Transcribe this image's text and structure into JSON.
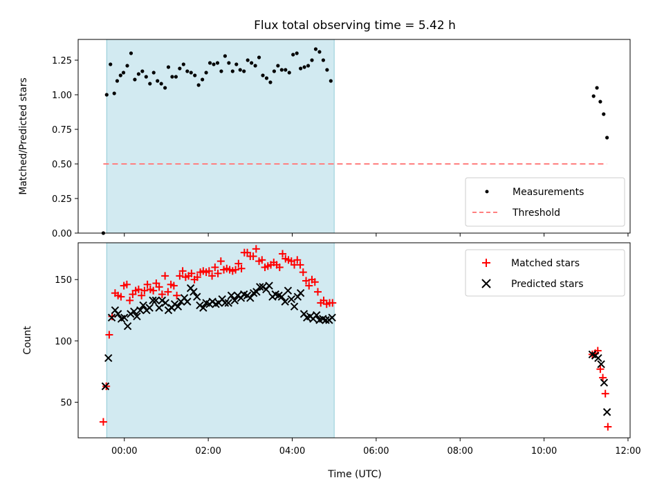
{
  "chart_data": [
    {
      "type": "scatter",
      "title": "Flux total observing time = 5.42 h",
      "xlabel": "",
      "ylabel": "Matched/Predicted stars",
      "xlim": [
        -1.1,
        12.05
      ],
      "ylim": [
        0,
        1.4
      ],
      "yticks": [
        0,
        0.25,
        0.5,
        0.75,
        1.0,
        1.25
      ],
      "ytick_labels": [
        "0.00",
        "0.25",
        "0.50",
        "0.75",
        "1.00",
        "1.25"
      ],
      "xticks": [
        0,
        2,
        4,
        6,
        8,
        10,
        12
      ],
      "shaded_interval": [
        -0.42,
        5.0
      ],
      "shade_color": "#add8e6",
      "series": [
        {
          "name": "Measurements",
          "marker": "dot",
          "color": "#000000",
          "x": [
            -0.5,
            -0.42,
            -0.33,
            -0.24,
            -0.17,
            -0.09,
            -0.02,
            0.07,
            0.16,
            0.25,
            0.34,
            0.43,
            0.52,
            0.61,
            0.7,
            0.79,
            0.88,
            0.97,
            1.05,
            1.14,
            1.23,
            1.32,
            1.41,
            1.5,
            1.59,
            1.68,
            1.77,
            1.86,
            1.95,
            2.04,
            2.13,
            2.22,
            2.31,
            2.4,
            2.49,
            2.58,
            2.67,
            2.76,
            2.85,
            2.94,
            3.03,
            3.12,
            3.21,
            3.3,
            3.39,
            3.48,
            3.57,
            3.66,
            3.75,
            3.84,
            3.93,
            4.02,
            4.11,
            4.2,
            4.29,
            4.38,
            4.47,
            4.56,
            4.65,
            4.74,
            4.83,
            4.92,
            11.18,
            11.26,
            11.34,
            11.42,
            11.5
          ],
          "y": [
            0.0,
            1.0,
            1.22,
            1.01,
            1.1,
            1.14,
            1.16,
            1.21,
            1.3,
            1.11,
            1.15,
            1.17,
            1.13,
            1.08,
            1.16,
            1.1,
            1.08,
            1.05,
            1.2,
            1.13,
            1.13,
            1.19,
            1.22,
            1.17,
            1.16,
            1.14,
            1.07,
            1.11,
            1.16,
            1.23,
            1.22,
            1.23,
            1.17,
            1.28,
            1.23,
            1.17,
            1.22,
            1.18,
            1.17,
            1.25,
            1.23,
            1.21,
            1.27,
            1.14,
            1.12,
            1.09,
            1.17,
            1.21,
            1.18,
            1.18,
            1.16,
            1.29,
            1.3,
            1.19,
            1.2,
            1.21,
            1.25,
            1.33,
            1.31,
            1.25,
            1.18,
            1.1,
            0.99,
            1.05,
            0.95,
            0.86,
            0.69
          ]
        },
        {
          "name": "Threshold",
          "marker": "dashed-line",
          "color": "#ff7f7f",
          "x": [
            -0.5,
            11.5
          ],
          "y": [
            0.5,
            0.5
          ]
        }
      ],
      "legend_position": "lower right"
    },
    {
      "type": "scatter",
      "title": "",
      "xlabel": "Time (UTC)",
      "ylabel": "Count",
      "xlim": [
        -1.1,
        12.05
      ],
      "ylim": [
        21,
        180
      ],
      "yticks": [
        50,
        100,
        150
      ],
      "ytick_labels": [
        "50",
        "100",
        "150"
      ],
      "xticks": [
        0,
        2,
        4,
        6,
        8,
        10,
        12
      ],
      "xtick_labels": [
        "00:00",
        "02:00",
        "04:00",
        "06:00",
        "08:00",
        "10:00",
        "12:00"
      ],
      "shaded_interval": [
        -0.42,
        5.0
      ],
      "shade_color": "#add8e6",
      "series": [
        {
          "name": "Matched stars",
          "marker": "plus",
          "color": "#ff0000",
          "x": [
            -0.5,
            -0.43,
            -0.36,
            -0.29,
            -0.22,
            -0.15,
            -0.08,
            -0.01,
            0.06,
            0.13,
            0.2,
            0.27,
            0.34,
            0.41,
            0.48,
            0.55,
            0.62,
            0.69,
            0.76,
            0.83,
            0.9,
            0.97,
            1.04,
            1.11,
            1.18,
            1.25,
            1.32,
            1.39,
            1.46,
            1.53,
            1.6,
            1.67,
            1.74,
            1.81,
            1.88,
            1.95,
            2.02,
            2.09,
            2.16,
            2.23,
            2.3,
            2.37,
            2.44,
            2.51,
            2.58,
            2.65,
            2.72,
            2.79,
            2.86,
            2.93,
            3.0,
            3.07,
            3.14,
            3.21,
            3.28,
            3.35,
            3.42,
            3.49,
            3.56,
            3.63,
            3.7,
            3.77,
            3.84,
            3.91,
            3.98,
            4.05,
            4.12,
            4.19,
            4.26,
            4.33,
            4.4,
            4.47,
            4.54,
            4.61,
            4.68,
            4.75,
            4.82,
            4.89,
            4.96,
            11.15,
            11.22,
            11.28,
            11.34,
            11.4,
            11.46,
            11.52
          ],
          "y": [
            34,
            63,
            105,
            120,
            139,
            137,
            136,
            145,
            146,
            133,
            138,
            141,
            142,
            137,
            141,
            146,
            142,
            141,
            147,
            144,
            138,
            153,
            140,
            146,
            145,
            137,
            153,
            157,
            152,
            153,
            155,
            150,
            152,
            156,
            157,
            156,
            157,
            153,
            160,
            155,
            165,
            158,
            159,
            158,
            157,
            158,
            163,
            159,
            172,
            172,
            169,
            169,
            175,
            165,
            166,
            160,
            161,
            162,
            164,
            162,
            160,
            171,
            167,
            166,
            165,
            162,
            166,
            162,
            156,
            149,
            145,
            150,
            148,
            140,
            131,
            133,
            130,
            131,
            131,
            89,
            90,
            92,
            77,
            70,
            57,
            30
          ],
          "x_plot": "matched"
        },
        {
          "name": "Predicted stars",
          "marker": "x",
          "color": "#000000",
          "x": [
            -0.45,
            -0.38,
            -0.3,
            -0.22,
            -0.15,
            -0.07,
            0.0,
            0.08,
            0.15,
            0.23,
            0.3,
            0.38,
            0.45,
            0.53,
            0.6,
            0.68,
            0.75,
            0.83,
            0.9,
            0.98,
            1.05,
            1.13,
            1.2,
            1.28,
            1.35,
            1.43,
            1.5,
            1.58,
            1.65,
            1.73,
            1.8,
            1.88,
            1.95,
            2.03,
            2.1,
            2.18,
            2.25,
            2.33,
            2.4,
            2.48,
            2.55,
            2.63,
            2.7,
            2.78,
            2.85,
            2.93,
            3.0,
            3.08,
            3.15,
            3.23,
            3.3,
            3.38,
            3.45,
            3.53,
            3.6,
            3.68,
            3.75,
            3.83,
            3.9,
            3.98,
            4.05,
            4.13,
            4.2,
            4.28,
            4.35,
            4.43,
            4.5,
            4.58,
            4.65,
            4.73,
            4.8,
            4.88,
            4.95,
            11.15,
            11.22,
            11.29,
            11.36,
            11.43,
            11.5
          ],
          "y": [
            63,
            86,
            119,
            125,
            122,
            118,
            119,
            112,
            122,
            124,
            120,
            125,
            129,
            125,
            127,
            133,
            133,
            127,
            133,
            131,
            125,
            127,
            130,
            128,
            132,
            135,
            132,
            143,
            140,
            136,
            129,
            127,
            131,
            130,
            132,
            130,
            131,
            134,
            131,
            131,
            137,
            133,
            137,
            135,
            138,
            137,
            135,
            139,
            140,
            144,
            144,
            142,
            145,
            136,
            138,
            137,
            136,
            132,
            141,
            134,
            128,
            136,
            139,
            122,
            119,
            120,
            118,
            121,
            117,
            118,
            117,
            117,
            119,
            89,
            88,
            86,
            81,
            66,
            42
          ]
        }
      ],
      "legend_position": "upper right"
    }
  ]
}
